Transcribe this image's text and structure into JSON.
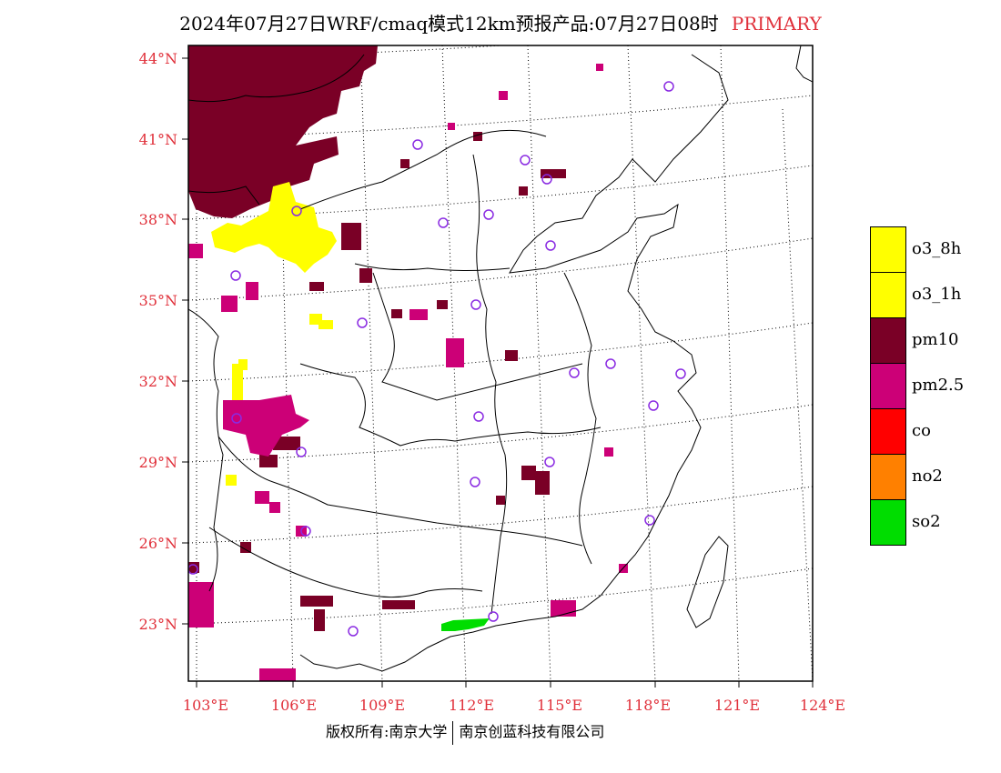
{
  "title": {
    "text": "2024年07月27日WRF/cmaq模式12km预报产品:07月27日08时",
    "tag": "PRIMARY"
  },
  "lat_labels": [
    "44°N",
    "41°N",
    "38°N",
    "35°N",
    "32°N",
    "29°N",
    "26°N",
    "23°N"
  ],
  "lon_labels": [
    "103°E",
    "106°E",
    "109°E",
    "112°E",
    "115°E",
    "118°E",
    "121°E",
    "124°E"
  ],
  "legend": [
    {
      "label": "o3_8h",
      "color": "#ffff00"
    },
    {
      "label": "o3_1h",
      "color": "#ffff00"
    },
    {
      "label": "pm10",
      "color": "#7a0026"
    },
    {
      "label": "pm2.5",
      "color": "#cc0077"
    },
    {
      "label": "co",
      "color": "#ff0000"
    },
    {
      "label": "no2",
      "color": "#ff8000"
    },
    {
      "label": "so2",
      "color": "#00dd00"
    }
  ],
  "footer": {
    "left": "版权所有:南京大学",
    "right": "南京创蓝科技有限公司"
  }
}
